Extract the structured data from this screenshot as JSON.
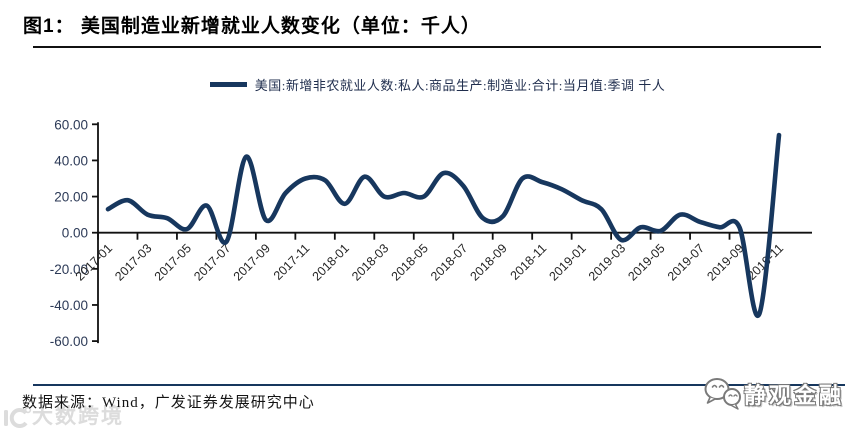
{
  "header": {
    "title": "图1：  美国制造业新增就业人数变化（单位：千人）"
  },
  "legend": {
    "label": "美国:新增非农就业人数:私人:商品生产:制造业:合计:当月值:季调 千人",
    "line_color": "#17375e"
  },
  "chart_data": {
    "type": "line",
    "title": "美国制造业新增就业人数变化",
    "unit_label": "千人",
    "smoothed": true,
    "grid": false,
    "legend_position": "top-center",
    "legend_entry": "美国:新增非农就业人数:私人:商品生产:制造业:合计:当月值:季调 千人",
    "line_color": "#17375e",
    "ylim": [
      -60,
      60
    ],
    "y_tick_labels": [
      "60.00",
      "40.00",
      "20.00",
      "0.00",
      "-20.00",
      "-40.00",
      "-60.00"
    ],
    "y_tick_values": [
      60,
      40,
      20,
      0,
      -20,
      -40,
      -60
    ],
    "x_tick_labels": [
      "2017-01",
      "2017-03",
      "2017-05",
      "2017-07",
      "2017-09",
      "2017-11",
      "2018-01",
      "2018-03",
      "2018-05",
      "2018-07",
      "2018-09",
      "2018-11",
      "2019-01",
      "2019-03",
      "2019-05",
      "2019-07",
      "2019-09",
      "2019-11"
    ],
    "categories": [
      "2017-01",
      "2017-02",
      "2017-03",
      "2017-04",
      "2017-05",
      "2017-06",
      "2017-07",
      "2017-08",
      "2017-09",
      "2017-10",
      "2017-11",
      "2017-12",
      "2018-01",
      "2018-02",
      "2018-03",
      "2018-04",
      "2018-05",
      "2018-06",
      "2018-07",
      "2018-08",
      "2018-09",
      "2018-10",
      "2018-11",
      "2018-12",
      "2019-01",
      "2019-02",
      "2019-03",
      "2019-04",
      "2019-05",
      "2019-06",
      "2019-07",
      "2019-08",
      "2019-09",
      "2019-10",
      "2019-11"
    ],
    "values": [
      13,
      18,
      10,
      8,
      2,
      15,
      -5,
      42,
      7,
      22,
      30,
      29,
      16,
      31,
      20,
      22,
      20,
      33,
      26,
      8,
      9,
      30,
      28,
      24,
      18,
      13,
      -4,
      3,
      1,
      10,
      6,
      3,
      3,
      -45,
      54
    ]
  },
  "footer": {
    "source": "数据来源：Wind，广发证券发展研究中心",
    "watermark": "大数跨境",
    "logo_text": "静观金融"
  },
  "colors": {
    "accent_navy": "#17375e",
    "axis_black": "#111111",
    "x_label": "#262626",
    "y_label": "#2c3a57",
    "watermark_gray": "#dcdcdc"
  }
}
